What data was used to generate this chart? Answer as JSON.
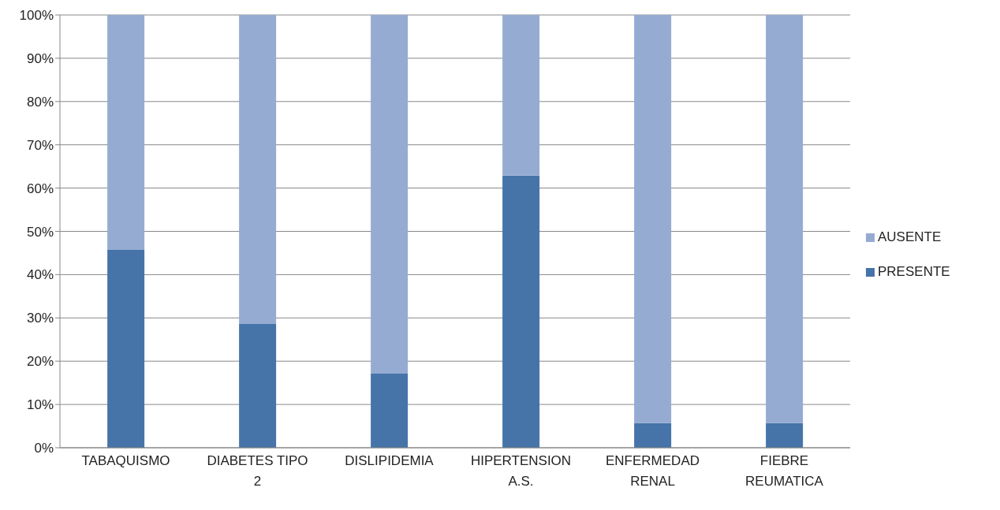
{
  "chart_data": {
    "type": "bar",
    "stacked": true,
    "categories": [
      "TABAQUISMO",
      "DIABETES TIPO 2",
      "DISLIPIDEMIA",
      "HIPERTENSION A.S.",
      "ENFERMEDAD RENAL",
      "FIEBRE REUMATICA"
    ],
    "series": [
      {
        "name": "PRESENTE",
        "color": "#4674a8",
        "values": [
          45.7,
          28.6,
          17.1,
          62.9,
          5.7,
          5.7
        ]
      },
      {
        "name": "AUSENTE",
        "color": "#95abd2",
        "values": [
          54.3,
          71.4,
          82.9,
          37.1,
          94.3,
          94.3
        ]
      }
    ],
    "ylim": [
      0,
      100
    ],
    "yticks": [
      {
        "value": 0,
        "label": "0%"
      },
      {
        "value": 10,
        "label": "10%"
      },
      {
        "value": 20,
        "label": "20%"
      },
      {
        "value": 30,
        "label": "30%"
      },
      {
        "value": 40,
        "label": "40%"
      },
      {
        "value": 50,
        "label": "50%"
      },
      {
        "value": 60,
        "label": "60%"
      },
      {
        "value": 70,
        "label": "70%"
      },
      {
        "value": 80,
        "label": "80%"
      },
      {
        "value": 90,
        "label": "90%"
      },
      {
        "value": 100,
        "label": "100%"
      }
    ],
    "grid": "y",
    "legend": "right"
  }
}
